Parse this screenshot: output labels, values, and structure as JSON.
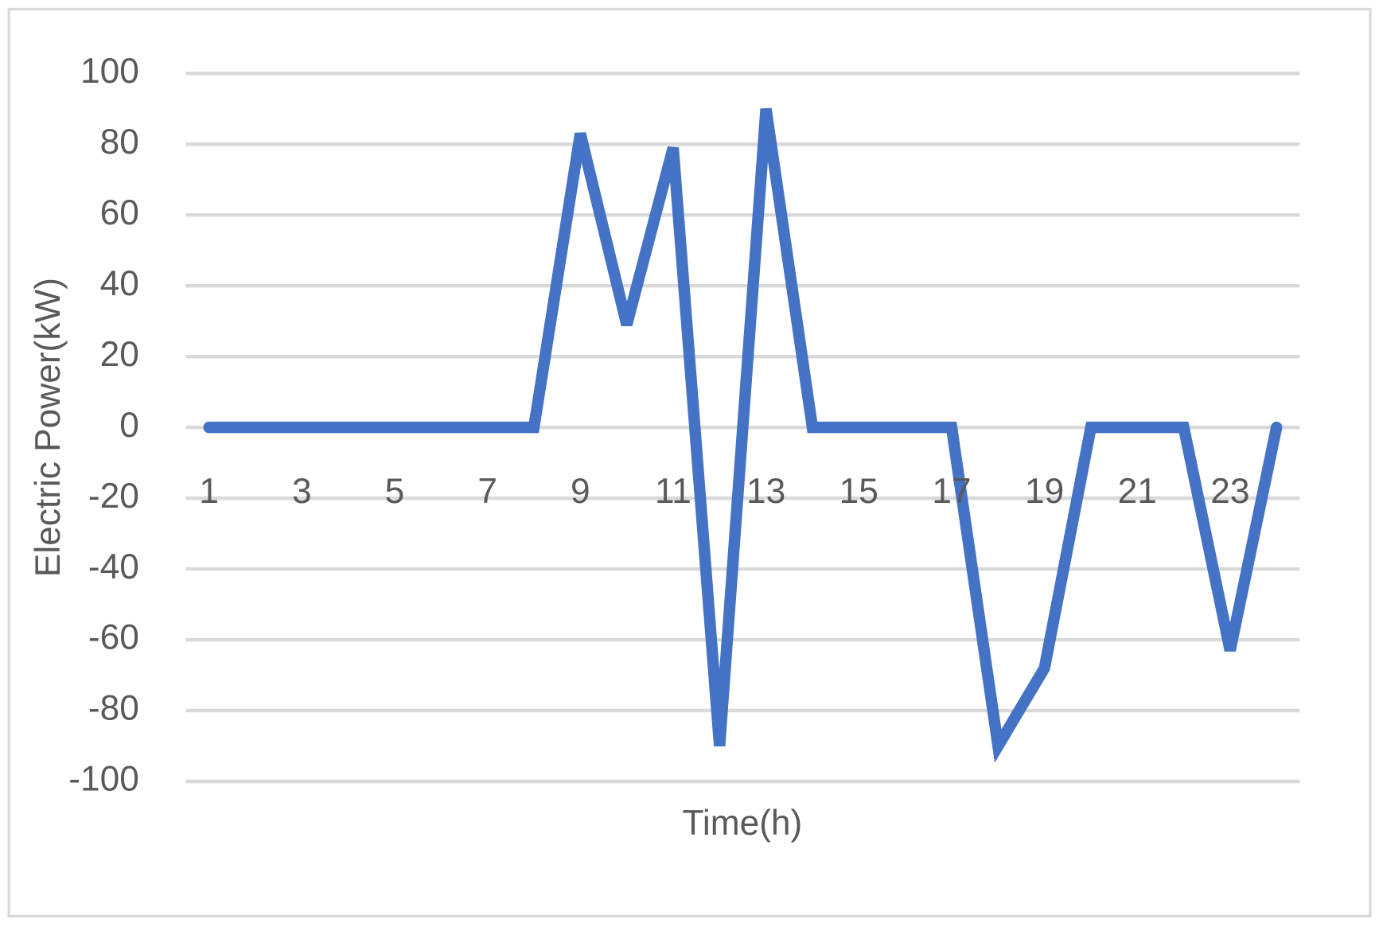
{
  "chart_data": {
    "type": "line",
    "x_label": "Time(h)",
    "y_label": "Electric Power(kW)",
    "categories": [
      1,
      null,
      3,
      null,
      5,
      null,
      7,
      null,
      9,
      null,
      11,
      null,
      13,
      null,
      15,
      null,
      17,
      null,
      19,
      null,
      21,
      null,
      23,
      null
    ],
    "series": [
      {
        "name": "Electric Power",
        "color": "#4472c4",
        "values": [
          0,
          0,
          0,
          0,
          0,
          0,
          0,
          0,
          83,
          29,
          79,
          -90,
          90,
          0,
          0,
          0,
          0,
          -90,
          -68,
          0,
          0,
          0,
          -63,
          0
        ]
      }
    ],
    "ylim": [
      -100,
      100
    ],
    "yticks": [
      -100,
      -80,
      -60,
      -40,
      -20,
      0,
      20,
      40,
      60,
      80,
      100
    ],
    "grid": true
  }
}
